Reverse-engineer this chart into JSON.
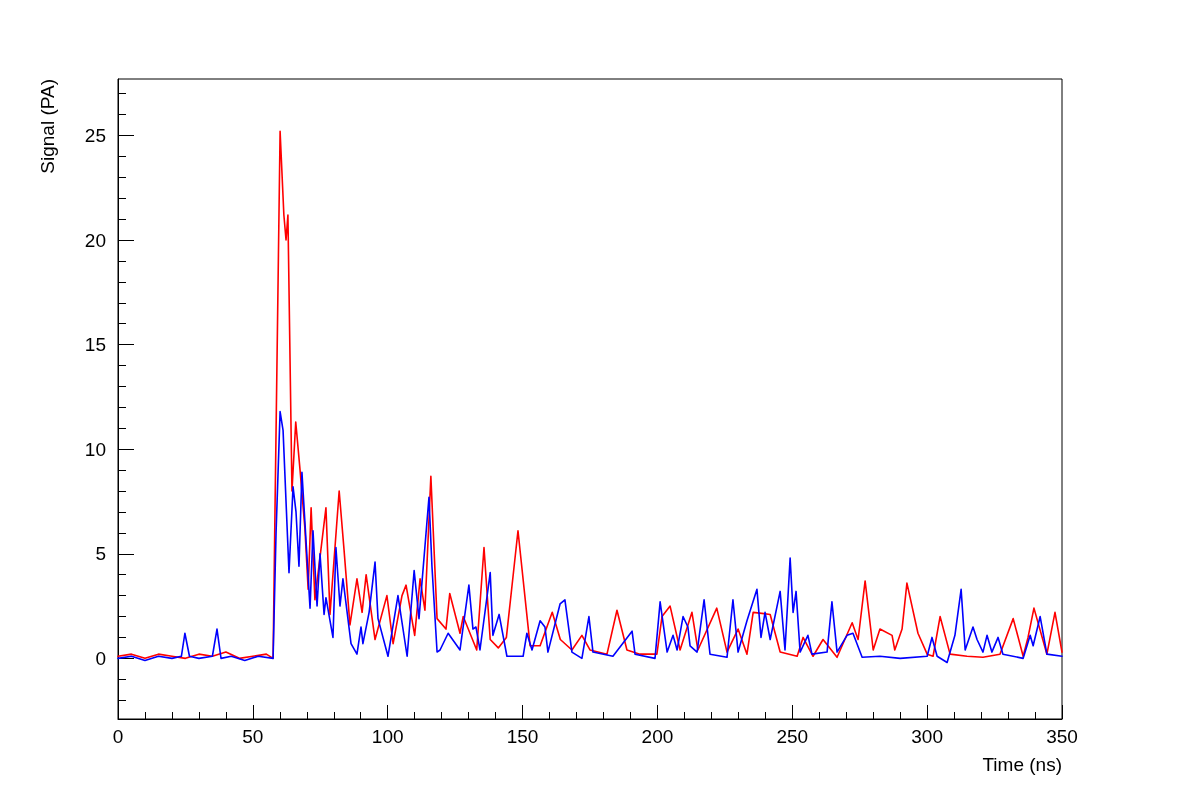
{
  "chart_data": {
    "type": "line",
    "xlabel": "Time (ns)",
    "ylabel": "Signal (PA)",
    "xlim": [
      0,
      350
    ],
    "xticks": [
      0,
      50,
      100,
      150,
      200,
      250,
      300,
      350
    ],
    "ylim": [
      -2.9,
      27.7
    ],
    "yticks": [
      0,
      5,
      10,
      15,
      20,
      25
    ],
    "grid": false,
    "marker": "none",
    "line_style": "solid",
    "series": [
      {
        "color": "#ff0000",
        "x": [
          0,
          5,
          10,
          15,
          20,
          25,
          30,
          35,
          40,
          45,
          50,
          55,
          57.5,
          58.2,
          60.1,
          61.5,
          62.3,
          63,
          64.5,
          65.9,
          67.5,
          69.3,
          70.5,
          71.6,
          73,
          77.1,
          78.6,
          82,
          83.8,
          86,
          88.6,
          90.5,
          92,
          95.3,
          99.7,
          102,
          105.3,
          106.8,
          110,
          112,
          113.8,
          116,
          118.3,
          121.6,
          123,
          126.8,
          128,
          133,
          135.7,
          138,
          141,
          144,
          148.3,
          152.8,
          156.5,
          161,
          164,
          168.3,
          172,
          175,
          181.3,
          185,
          188.7,
          193.5,
          199.8,
          201.7,
          204.7,
          208.4,
          212.8,
          215,
          222,
          225.8,
          229.9,
          233.2,
          235.5,
          241.8,
          245.5,
          251.8,
          254,
          257.7,
          261.4,
          266.6,
          272.2,
          274.4,
          277,
          280,
          282.5,
          287,
          288,
          290.7,
          292.5,
          296.6,
          300,
          302.2,
          304.8,
          308.5,
          314.8,
          320.7,
          327,
          331.9,
          335.6,
          337.4,
          339.6,
          344.4,
          347.4,
          350
        ],
        "values": [
          0.1,
          0.2,
          0.0,
          0.2,
          0.1,
          0.0,
          0.2,
          0.1,
          0.3,
          0.0,
          0.1,
          0.2,
          0.0,
          7.0,
          25.2,
          21.2,
          20.0,
          21.2,
          8.0,
          11.3,
          9.0,
          6.2,
          3.3,
          7.2,
          2.8,
          7.2,
          2.1,
          8.0,
          5.2,
          1.6,
          3.8,
          2.2,
          4.0,
          0.9,
          3.0,
          0.7,
          3.0,
          3.5,
          1.1,
          3.8,
          2.3,
          8.7,
          1.9,
          1.4,
          3.1,
          1.2,
          2.0,
          0.4,
          5.3,
          0.9,
          0.5,
          1.0,
          6.1,
          0.6,
          0.6,
          2.2,
          0.9,
          0.4,
          1.1,
          0.4,
          0.2,
          2.3,
          0.4,
          0.2,
          0.2,
          2.0,
          2.5,
          0.4,
          2.2,
          0.4,
          2.4,
          0.3,
          1.4,
          0.2,
          2.2,
          2.1,
          0.3,
          0.1,
          1.0,
          0.1,
          0.9,
          0.05,
          1.7,
          0.9,
          3.7,
          0.4,
          1.4,
          1.1,
          0.4,
          1.4,
          3.6,
          1.2,
          0.2,
          0.1,
          2.0,
          0.2,
          0.1,
          0.05,
          0.2,
          1.9,
          0.1,
          1.0,
          2.4,
          0.2,
          2.2,
          0.3
        ]
      },
      {
        "color": "#0000ff",
        "x": [
          0,
          5,
          10,
          15,
          20,
          23.5,
          24.8,
          26.5,
          30,
          35,
          36.7,
          38.2,
          42,
          47,
          52,
          57.5,
          58.6,
          60.1,
          61.2,
          63.4,
          64.9,
          66,
          67.1,
          68.2,
          71.2,
          72.3,
          73.8,
          74.9,
          76.4,
          77.1,
          79.7,
          80.8,
          82.3,
          83.4,
          86.4,
          88.6,
          90.1,
          90.8,
          93.1,
          95.3,
          96.4,
          100.1,
          103.8,
          107.2,
          109.8,
          111.6,
          115.3,
          116.4,
          118.3,
          119.4,
          122.4,
          126.8,
          130.1,
          131.6,
          132.7,
          134.2,
          138,
          139,
          141.3,
          144.2,
          150.2,
          151.6,
          153.5,
          156.5,
          158.3,
          159.4,
          163.9,
          165.7,
          168.3,
          172,
          174.6,
          176.1,
          183.5,
          190.6,
          191.7,
          199.1,
          201,
          203.6,
          205.8,
          207.3,
          209.5,
          211.3,
          212.1,
          214.7,
          217.3,
          219.5,
          225.8,
          228,
          229.9,
          233.2,
          236.9,
          238.4,
          239.9,
          241.8,
          245.5,
          247.3,
          249.2,
          250.3,
          251.4,
          252.9,
          255.8,
          257.3,
          262.9,
          264.7,
          266.6,
          270.3,
          272.5,
          275.9,
          282.5,
          290,
          300,
          301.8,
          303.7,
          307.4,
          310.3,
          312.6,
          314.1,
          317,
          318.5,
          320.7,
          322.2,
          324,
          326.3,
          328.1,
          335.6,
          338.2,
          339.3,
          341.9,
          344.4,
          350
        ],
        "values": [
          0.0,
          0.1,
          -0.1,
          0.1,
          0.0,
          0.1,
          1.2,
          0.1,
          0.0,
          0.1,
          1.4,
          0.0,
          0.1,
          -0.1,
          0.1,
          0.0,
          6.0,
          11.8,
          10.9,
          4.1,
          8.2,
          7.0,
          4.4,
          8.9,
          2.4,
          6.1,
          2.5,
          5.0,
          2.1,
          2.9,
          1.0,
          5.3,
          2.5,
          3.8,
          0.7,
          0.2,
          1.5,
          0.7,
          2.2,
          4.6,
          1.9,
          0.1,
          3.0,
          0.1,
          4.2,
          1.9,
          7.7,
          4.4,
          0.3,
          0.4,
          1.2,
          0.4,
          3.5,
          1.4,
          1.5,
          0.4,
          4.1,
          1.1,
          2.1,
          0.1,
          0.1,
          1.2,
          0.4,
          1.8,
          1.5,
          0.3,
          2.6,
          2.8,
          0.3,
          0.0,
          2.0,
          0.3,
          0.1,
          1.3,
          0.2,
          0.0,
          2.7,
          0.3,
          1.1,
          0.4,
          2.0,
          1.5,
          0.6,
          0.3,
          2.8,
          0.2,
          0.05,
          2.8,
          0.3,
          1.8,
          3.3,
          1.0,
          2.2,
          0.9,
          3.2,
          0.4,
          4.8,
          2.2,
          3.2,
          0.3,
          1.1,
          0.2,
          0.3,
          2.7,
          0.3,
          1.1,
          1.2,
          0.05,
          0.1,
          0.0,
          0.1,
          1.0,
          0.1,
          -0.2,
          1.1,
          3.3,
          0.4,
          1.5,
          0.9,
          0.3,
          1.1,
          0.3,
          1.0,
          0.2,
          0.0,
          1.1,
          0.6,
          2.0,
          0.2,
          0.1
        ]
      }
    ]
  }
}
